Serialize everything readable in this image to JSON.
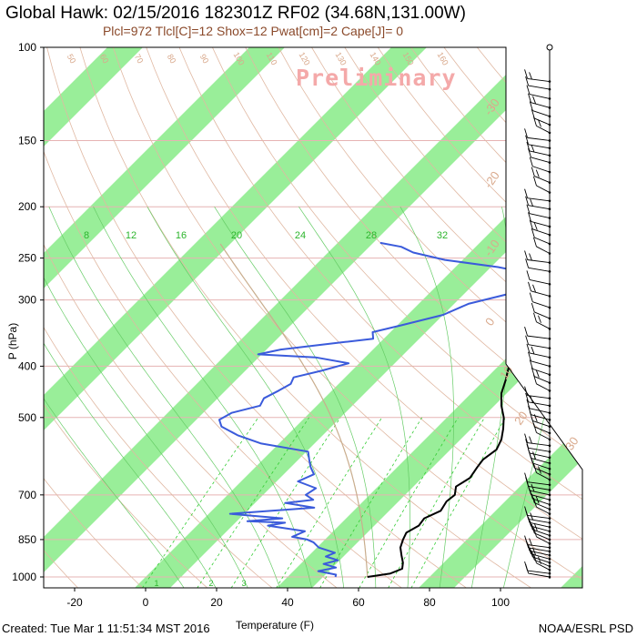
{
  "header": {
    "title": "Global Hawk: 02/15/2016 182301Z RF02 (34.68N,131.00W)",
    "indices": "Plcl=972 Tlcl[C]=12 Shox=12 Pwat[cm]=2 Cape[J]= 0",
    "watermark": "Preliminary"
  },
  "footer": {
    "created": "Created: Tue Mar  1 11:51:34 MST 2016",
    "credit": "NOAA/ESRL PSD"
  },
  "colors": {
    "temperature": "#000000",
    "dewpoint": "#3b5bdb",
    "isotherm_band": "#99ee99",
    "dry_adiabat": "#e0b8a2",
    "moist_adiabat": "#66cc66",
    "mixing_ratio": "#33cc33",
    "isobar": "#e6b3b3",
    "parcel": "#c9ad8d"
  },
  "chart_data": {
    "type": "line",
    "chart_kind": "skew-T log-P sounding",
    "xlabel": "Temperature (F)",
    "ylabel": "P (hPa)",
    "x_ticks": [
      -20,
      0,
      20,
      40,
      60,
      80,
      100
    ],
    "xlim": [
      -28,
      112
    ],
    "y_ticks": [
      100,
      150,
      200,
      250,
      300,
      400,
      500,
      700,
      850,
      1000
    ],
    "ylim": [
      100,
      1050
    ],
    "y_scale": "log",
    "mixing_ratio_labels": [
      8,
      12,
      16,
      20,
      24,
      28,
      32
    ],
    "bottom_mixing_ratio_labels": [
      1,
      2,
      3
    ],
    "theta_labels": [
      50,
      60,
      70,
      80,
      90,
      100,
      110,
      120,
      130,
      140,
      150,
      160
    ],
    "theta_e_labels": [
      -30,
      -20,
      -10,
      0,
      10,
      20,
      30
    ],
    "series": [
      {
        "name": "Temperature",
        "points": [
          [
            1000,
            62.5
          ],
          [
            985,
            68.0
          ],
          [
            965,
            70.0
          ],
          [
            940,
            68.5
          ],
          [
            910,
            66.0
          ],
          [
            880,
            63.5
          ],
          [
            850,
            62.0
          ],
          [
            825,
            61.0
          ],
          [
            800,
            62.5
          ],
          [
            775,
            62.0
          ],
          [
            750,
            64.5
          ],
          [
            720,
            63.5
          ],
          [
            700,
            64.0
          ],
          [
            675,
            62.0
          ],
          [
            650,
            63.5
          ],
          [
            620,
            62.5
          ],
          [
            600,
            62.0
          ],
          [
            575,
            63.0
          ],
          [
            550,
            61.5
          ],
          [
            525,
            59.0
          ],
          [
            500,
            56.0
          ],
          [
            475,
            52.0
          ],
          [
            450,
            48.5
          ],
          [
            425,
            46.0
          ],
          [
            400,
            43.0
          ],
          [
            385,
            42.5
          ],
          [
            375,
            42.0
          ],
          [
            362,
            44.0
          ],
          [
            355,
            42.5
          ],
          [
            345,
            45.5
          ],
          [
            330,
            44.0
          ],
          [
            315,
            40.0
          ],
          [
            300,
            36.5
          ],
          [
            285,
            32.0
          ],
          [
            270,
            29.0
          ],
          [
            258,
            28.0
          ],
          [
            248,
            29.5
          ],
          [
            238,
            33.5
          ],
          [
            228,
            34.5
          ],
          [
            218,
            34.0
          ],
          [
            208,
            37.0
          ],
          [
            198,
            36.5
          ],
          [
            185,
            34.5
          ],
          [
            175,
            34.5
          ],
          [
            165,
            33.5
          ],
          [
            155,
            35.0
          ],
          [
            148,
            33.5
          ],
          [
            140,
            35.0
          ],
          [
            132,
            33.0
          ],
          [
            125,
            35.5
          ],
          [
            117,
            34.0
          ]
        ]
      },
      {
        "name": "Dewpoint",
        "points": [
          [
            1000,
            53.5
          ],
          [
            990,
            53.0
          ],
          [
            975,
            47.0
          ],
          [
            960,
            51.0
          ],
          [
            945,
            46.5
          ],
          [
            930,
            49.5
          ],
          [
            915,
            45.0
          ],
          [
            900,
            46.5
          ],
          [
            880,
            40.5
          ],
          [
            860,
            37.5
          ],
          [
            850,
            35.0
          ],
          [
            840,
            30.0
          ],
          [
            820,
            32.0
          ],
          [
            800,
            20.0
          ],
          [
            790,
            24.0
          ],
          [
            785,
            13.0
          ],
          [
            775,
            22.0
          ],
          [
            760,
            6.0
          ],
          [
            740,
            28.0
          ],
          [
            725,
            18.5
          ],
          [
            715,
            25.5
          ],
          [
            700,
            22.0
          ],
          [
            680,
            23.0
          ],
          [
            660,
            16.0
          ],
          [
            640,
            18.5
          ],
          [
            620,
            15.5
          ],
          [
            600,
            13.0
          ],
          [
            580,
            10.5
          ],
          [
            560,
            -5.0
          ],
          [
            540,
            -14.0
          ],
          [
            520,
            -21.0
          ],
          [
            505,
            -23.5
          ],
          [
            490,
            -22.0
          ],
          [
            475,
            -16.0
          ],
          [
            460,
            -17.0
          ],
          [
            445,
            -15.0
          ],
          [
            432,
            -13.5
          ],
          [
            420,
            -14.5
          ],
          [
            408,
            -8.5
          ],
          [
            395,
            -3.0
          ],
          [
            385,
            -14.0
          ],
          [
            380,
            -31.0
          ],
          [
            372,
            -26.0
          ],
          [
            360,
            -10.0
          ],
          [
            355,
            -3.0
          ],
          [
            345,
            -5.0
          ],
          [
            335,
            1.0
          ],
          [
            320,
            10.0
          ],
          [
            305,
            14.0
          ],
          [
            290,
            24.0
          ],
          [
            278,
            28.0
          ],
          [
            268,
            24.0
          ],
          [
            260,
            12.0
          ],
          [
            252,
            -5.0
          ],
          [
            244,
            -16.0
          ],
          [
            238,
            -21.0
          ],
          [
            234,
            -28.0
          ]
        ]
      }
    ],
    "wind_barbs": {
      "column": "right",
      "levels_hPa": [
        116,
        120,
        125,
        130,
        135,
        140,
        145,
        150,
        155,
        160,
        165,
        172,
        180,
        188,
        195,
        202,
        210,
        218,
        226,
        235,
        245,
        255,
        265,
        280,
        295,
        310,
        325,
        340,
        355,
        370,
        385,
        400,
        415,
        430,
        445,
        460,
        475,
        490,
        505,
        520,
        535,
        550,
        565,
        580,
        595,
        610,
        625,
        640,
        655,
        670,
        685,
        700,
        715,
        730,
        745,
        760,
        775,
        790,
        805,
        820,
        835,
        850,
        865,
        880,
        895,
        910,
        925,
        940,
        955,
        970,
        985,
        1000
      ]
    }
  }
}
